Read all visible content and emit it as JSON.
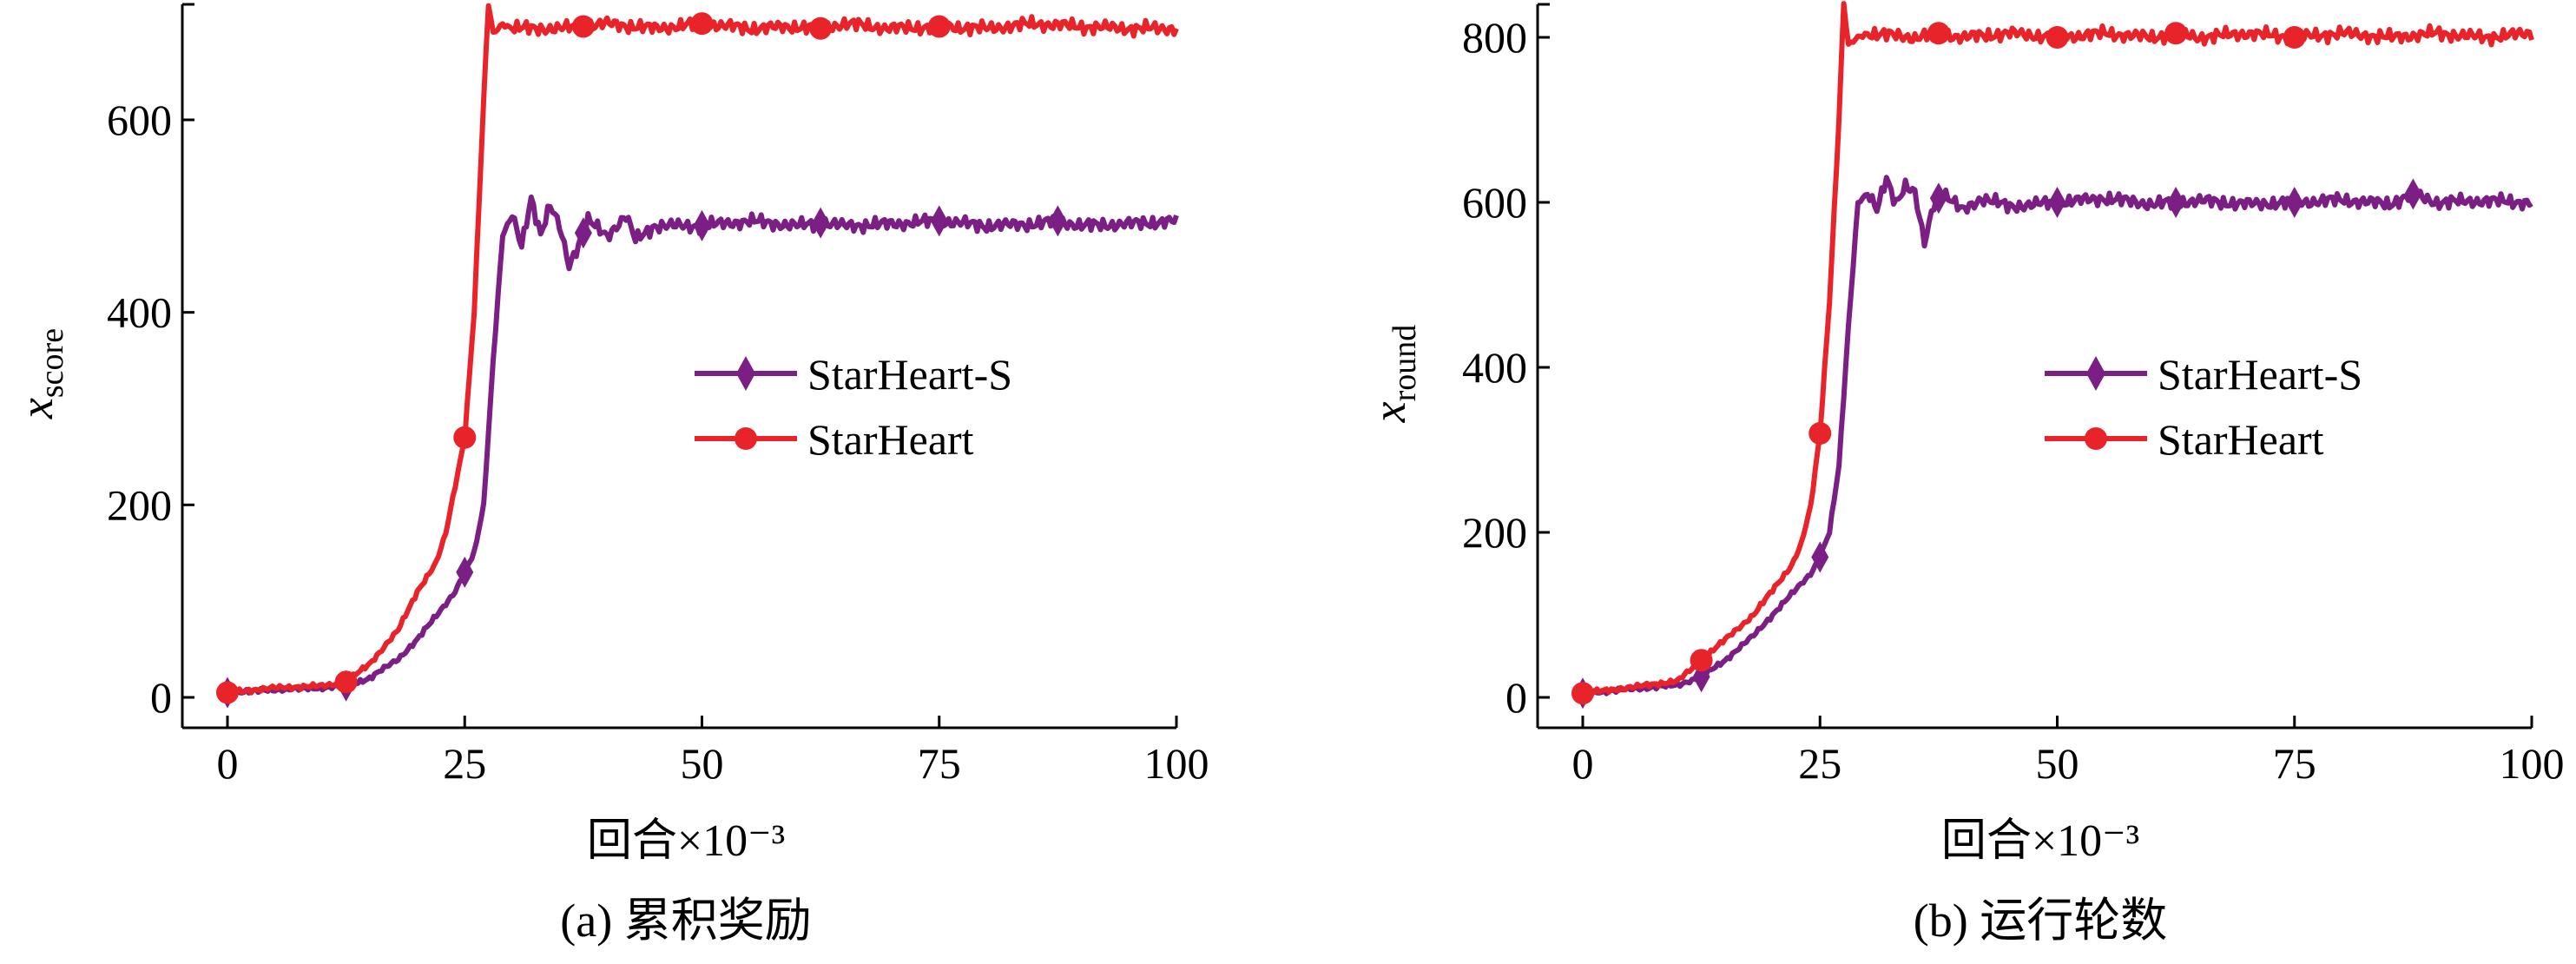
{
  "colors": {
    "starheart_s": "#7B1F84",
    "starheart": "#E8232A",
    "axis": "#000000"
  },
  "chart_data": [
    {
      "type": "line",
      "caption": "(a) 累积奖励",
      "xlabel": "回合×10⁻³",
      "ylabel_main": "x",
      "ylabel_sub": "score",
      "xlim": [
        0,
        100
      ],
      "ylim": [
        0,
        720
      ],
      "xticks": [
        0,
        25,
        50,
        75,
        100
      ],
      "yticks": [
        0,
        200,
        400,
        600
      ],
      "legend_position": "center-right",
      "series": [
        {
          "name": "StarHeart-S",
          "color": "#7B1F84",
          "marker": "diamond",
          "markers_x": [
            0,
            12.5,
            25,
            37.5,
            50,
            62.5,
            75,
            87.5
          ],
          "x": [
            0,
            5,
            10,
            12.5,
            15,
            18,
            20,
            22,
            24,
            25,
            26,
            27,
            28,
            29,
            30,
            31,
            32,
            33,
            34,
            35,
            36,
            37,
            38,
            40,
            42,
            43,
            45,
            50,
            55,
            60,
            62.5,
            65,
            70,
            75,
            80,
            85,
            87.5,
            90,
            95,
            100
          ],
          "y": [
            5,
            8,
            10,
            12,
            20,
            40,
            60,
            85,
            110,
            130,
            150,
            200,
            350,
            480,
            500,
            470,
            520,
            480,
            510,
            490,
            450,
            470,
            495,
            480,
            500,
            475,
            490,
            490,
            495,
            490,
            493,
            490,
            492,
            495,
            490,
            492,
            495,
            490,
            492,
            495
          ]
        },
        {
          "name": "StarHeart",
          "color": "#E8232A",
          "marker": "circle",
          "markers_x": [
            0,
            12.5,
            25,
            37.5,
            50,
            62.5,
            75
          ],
          "x": [
            0,
            5,
            10,
            12.5,
            15,
            18,
            20,
            22,
            23,
            24,
            25,
            26,
            27,
            27.5,
            28,
            29,
            30,
            35,
            37.5,
            40,
            45,
            50,
            55,
            60,
            62.5,
            65,
            70,
            75,
            80,
            85,
            90,
            95,
            100
          ],
          "y": [
            5,
            10,
            12,
            16,
            35,
            70,
            110,
            140,
            170,
            220,
            270,
            400,
            620,
            720,
            690,
            700,
            695,
            695,
            697,
            700,
            695,
            700,
            695,
            697,
            695,
            700,
            695,
            697,
            695,
            700,
            697,
            695,
            695
          ]
        }
      ]
    },
    {
      "type": "line",
      "caption": "(b) 运行轮数",
      "xlabel": "回合×10⁻³",
      "ylabel_main": "x",
      "ylabel_sub": "round",
      "xlim": [
        0,
        100
      ],
      "ylim": [
        0,
        840
      ],
      "xticks": [
        0,
        25,
        50,
        75,
        100
      ],
      "yticks": [
        0,
        200,
        400,
        600,
        800
      ],
      "legend_position": "center-right",
      "series": [
        {
          "name": "StarHeart-S",
          "color": "#7B1F84",
          "marker": "diamond",
          "markers_x": [
            0,
            12.5,
            25,
            37.5,
            50,
            62.5,
            75,
            87.5
          ],
          "x": [
            0,
            5,
            10,
            12.5,
            15,
            18,
            20,
            22,
            24,
            25,
            26,
            27,
            28,
            29,
            30,
            31,
            32,
            33,
            34,
            35,
            36,
            37,
            38,
            40,
            42,
            45,
            50,
            55,
            60,
            62.5,
            65,
            70,
            75,
            80,
            85,
            87.5,
            90,
            95,
            100
          ],
          "y": [
            5,
            10,
            15,
            25,
            45,
            75,
            100,
            125,
            150,
            170,
            200,
            280,
            450,
            600,
            610,
            590,
            630,
            600,
            620,
            610,
            550,
            600,
            610,
            590,
            605,
            595,
            600,
            605,
            598,
            600,
            602,
            598,
            600,
            603,
            598,
            610,
            600,
            602,
            600
          ]
        },
        {
          "name": "StarHeart",
          "color": "#E8232A",
          "marker": "circle",
          "markers_x": [
            0,
            12.5,
            25,
            37.5,
            50,
            62.5,
            75
          ],
          "x": [
            0,
            5,
            10,
            12.5,
            15,
            18,
            20,
            22,
            23,
            24,
            25,
            26,
            27,
            27.5,
            28,
            29,
            30,
            35,
            37.5,
            40,
            45,
            50,
            55,
            60,
            62.5,
            65,
            70,
            75,
            80,
            85,
            90,
            95,
            100
          ],
          "y": [
            5,
            12,
            20,
            45,
            70,
            100,
            130,
            160,
            185,
            230,
            320,
            480,
            700,
            840,
            790,
            800,
            805,
            800,
            805,
            800,
            805,
            800,
            805,
            800,
            805,
            800,
            805,
            800,
            805,
            800,
            805,
            800,
            805
          ]
        }
      ]
    }
  ]
}
